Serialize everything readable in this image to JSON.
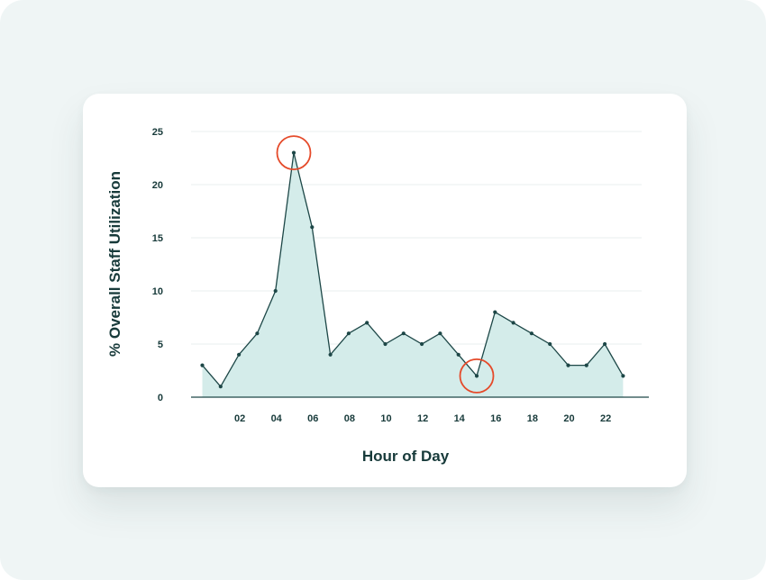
{
  "chart_data": {
    "type": "area",
    "title": "",
    "xlabel": "Hour of Day",
    "ylabel": "% Overall Staff Utilization",
    "x": [
      0,
      1,
      2,
      3,
      4,
      5,
      6,
      7,
      8,
      9,
      10,
      11,
      12,
      13,
      14,
      15,
      16,
      17,
      18,
      19,
      20,
      21,
      22,
      23
    ],
    "values": [
      3,
      1,
      4,
      6,
      10,
      23,
      16,
      4,
      6,
      7,
      5,
      6,
      5,
      6,
      4,
      2,
      8,
      7,
      6,
      5,
      3,
      3,
      5,
      2
    ],
    "xticks": [
      "02",
      "04",
      "06",
      "08",
      "10",
      "12",
      "14",
      "16",
      "18",
      "20",
      "22"
    ],
    "yticks": [
      "0",
      "5",
      "10",
      "15",
      "20",
      "25"
    ],
    "ylim": [
      0,
      25
    ],
    "grid": true,
    "highlighted_points": [
      5,
      15
    ],
    "colors": {
      "line": "#1d4747",
      "fill": "#d4ecea",
      "grid": "#eaefef",
      "axis": "#1d4747",
      "highlight": "#e54a2a",
      "text": "#173a3a"
    }
  }
}
